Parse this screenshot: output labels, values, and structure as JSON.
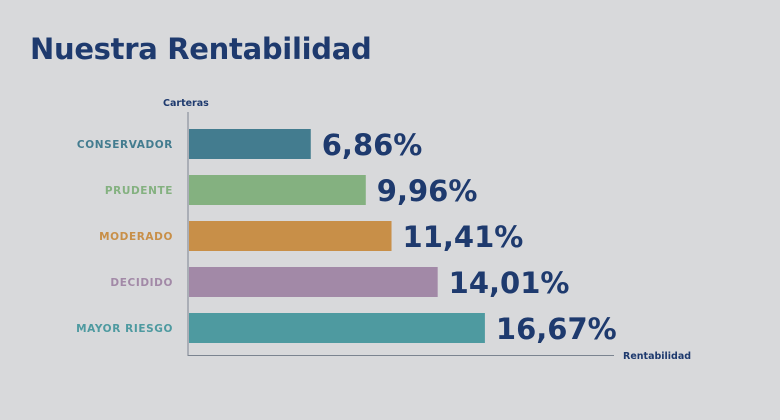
{
  "page": {
    "title": "Nuestra Rentabilidad",
    "background": "#d8d9db",
    "title_color": "#1e3a6e"
  },
  "chart_data": {
    "type": "bar",
    "orientation": "horizontal",
    "title": "Nuestra Rentabilidad",
    "ylabel": "Carteras",
    "xlabel": "Rentabilidad",
    "categories": [
      "CONSERVADOR",
      "PRUDENTE",
      "MODERADO",
      "DECIDIDO",
      "MAYOR RIESGO"
    ],
    "values": [
      6.86,
      9.96,
      11.41,
      14.01,
      16.67
    ],
    "value_labels": [
      "6,86%",
      "9,96%",
      "11,41%",
      "14,01%",
      "16,67%"
    ],
    "colors": [
      "#437c8f",
      "#84b180",
      "#c88f48",
      "#a289a7",
      "#4e9aa0"
    ],
    "xlim": [
      0,
      24
    ],
    "grid": false,
    "legend": "none"
  }
}
